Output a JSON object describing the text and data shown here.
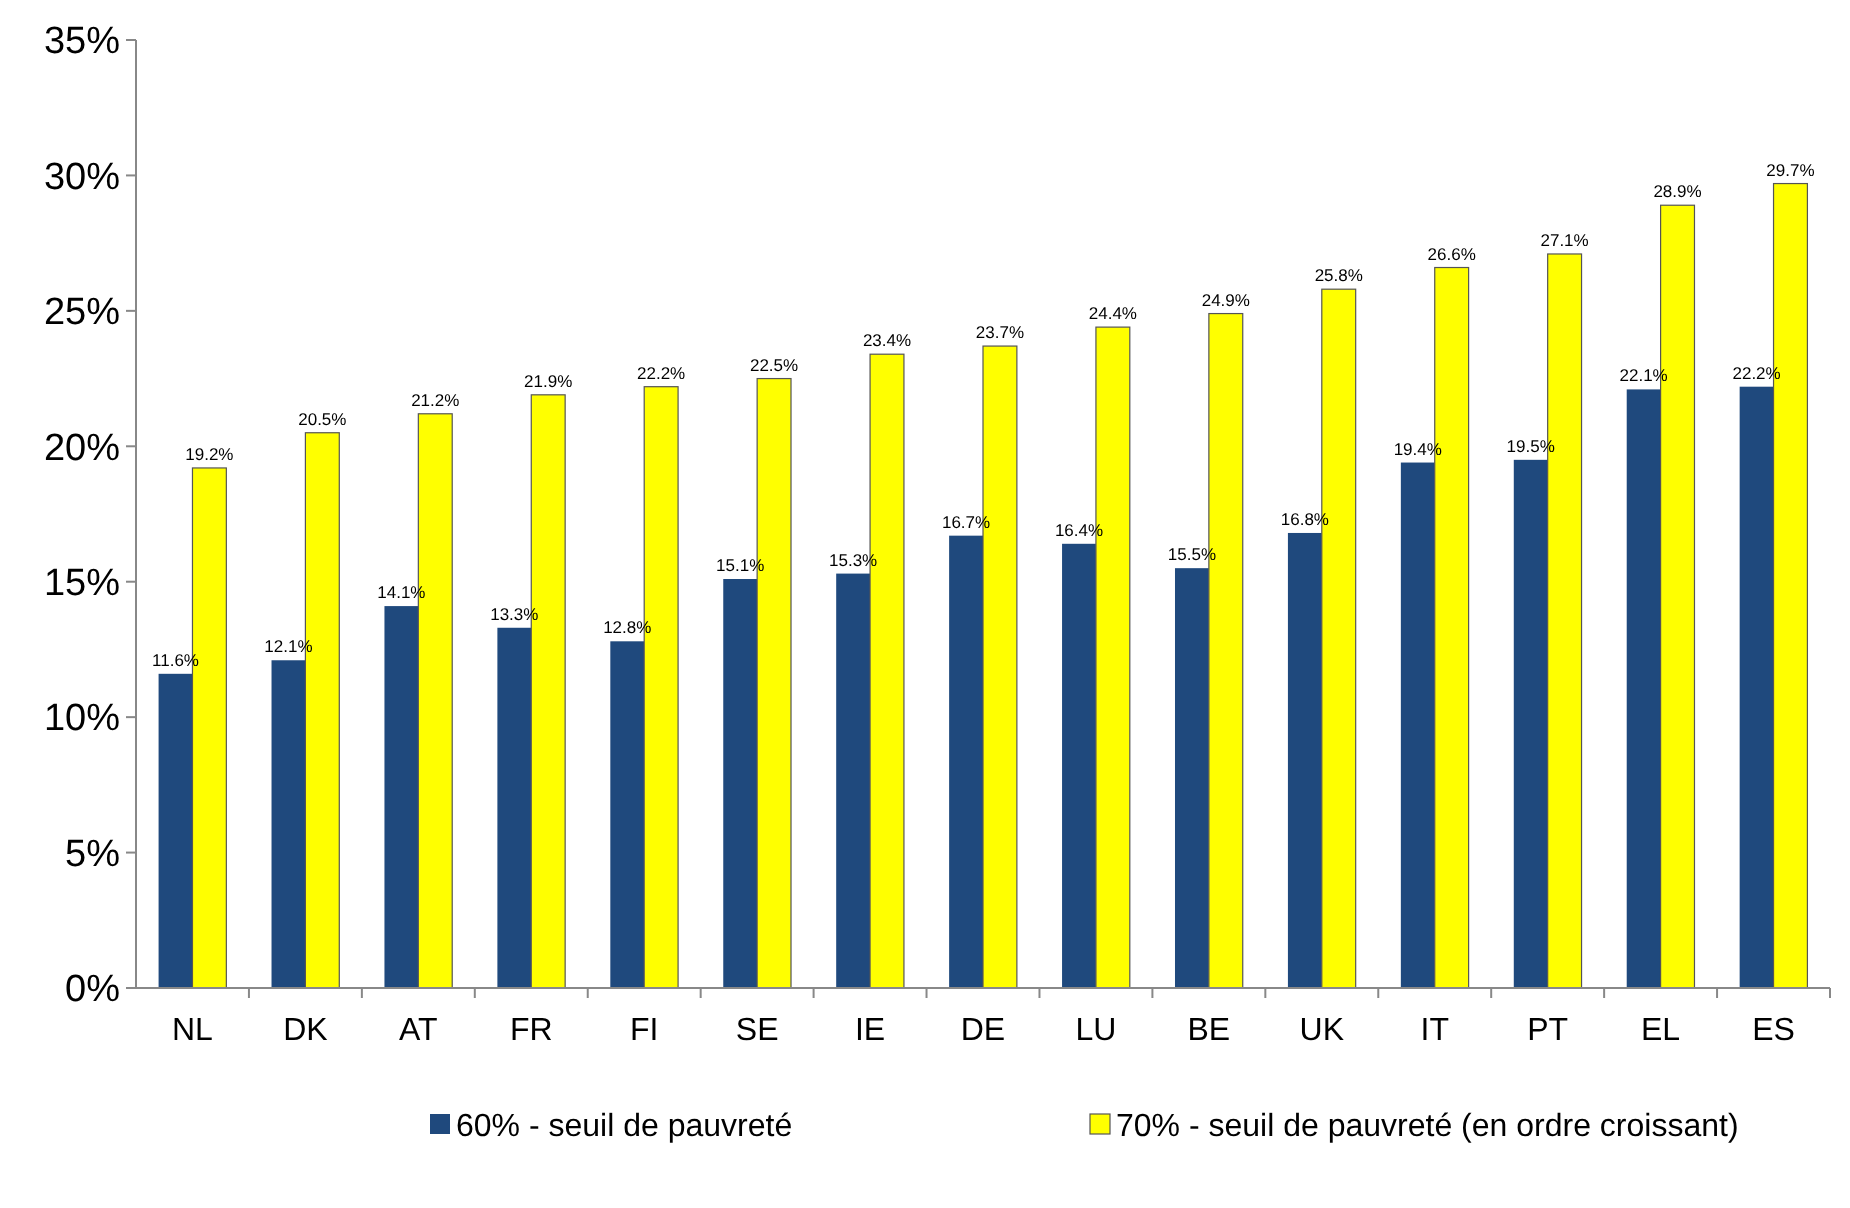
{
  "chart_data": {
    "type": "bar",
    "categories": [
      "NL",
      "DK",
      "AT",
      "FR",
      "FI",
      "SE",
      "IE",
      "DE",
      "LU",
      "BE",
      "UK",
      "IT",
      "PT",
      "EL",
      "ES"
    ],
    "series": [
      {
        "name": "60% - seuil de pauvreté",
        "color": "#1f497d",
        "values": [
          11.6,
          12.1,
          14.1,
          13.3,
          12.8,
          15.1,
          15.3,
          16.7,
          16.4,
          15.5,
          16.8,
          19.4,
          19.5,
          22.1,
          22.2
        ],
        "value_labels": [
          "11.6%",
          "12.1%",
          "14.1%",
          "13.3%",
          "12.8%",
          "15.1%",
          "15.3%",
          "16.7%",
          "16.4%",
          "15.5%",
          "16.8%",
          "19.4%",
          "19.5%",
          "22.1%",
          "22.2%"
        ]
      },
      {
        "name": "70% - seuil de pauvreté (en ordre croissant)",
        "color": "#ffff00",
        "values": [
          19.2,
          20.5,
          21.2,
          21.9,
          22.2,
          22.5,
          23.4,
          23.7,
          24.4,
          24.9,
          25.8,
          26.6,
          27.1,
          28.9,
          29.7
        ],
        "value_labels": [
          "19.2%",
          "20.5%",
          "21.2%",
          "21.9%",
          "22.2%",
          "22.5%",
          "23.4%",
          "23.7%",
          "24.4%",
          "24.9%",
          "25.8%",
          "26.6%",
          "27.1%",
          "28.9%",
          "29.7%"
        ]
      }
    ],
    "ylim": [
      0,
      35
    ],
    "yticks": [
      {
        "value": 0,
        "label": "0%"
      },
      {
        "value": 5,
        "label": "5%"
      },
      {
        "value": 10,
        "label": "10%"
      },
      {
        "value": 15,
        "label": "15%"
      },
      {
        "value": 20,
        "label": "20%"
      },
      {
        "value": 25,
        "label": "25%"
      },
      {
        "value": 30,
        "label": "30%"
      },
      {
        "value": 35,
        "label": "35%"
      }
    ],
    "grid": false,
    "legend": "bottom"
  }
}
